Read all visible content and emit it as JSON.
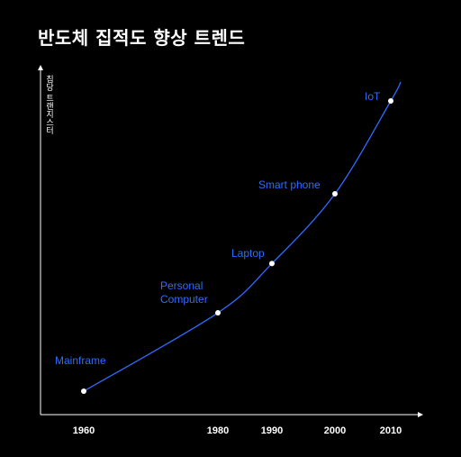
{
  "chart_data": {
    "type": "line",
    "title": "반도체 집적도 향상 트렌드",
    "ylabel": "칩당 트랜지스터",
    "xlabel": "",
    "x_ticks": [
      "1960",
      "1980",
      "1990",
      "2000",
      "2010"
    ],
    "points": [
      {
        "x": 1960,
        "level": 0.0,
        "label": [
          "Mainframe"
        ]
      },
      {
        "x": 1980,
        "level": 0.27,
        "label": [
          "Personal",
          "Computer"
        ]
      },
      {
        "x": 1990,
        "level": 0.44,
        "label": [
          "Laptop"
        ]
      },
      {
        "x": 2000,
        "level": 0.68,
        "label": [
          "Smart phone"
        ]
      },
      {
        "x": 2010,
        "level": 1.0,
        "label": [
          "IoT"
        ]
      }
    ],
    "line_color": "#2f6bff",
    "point_color": "#ffffff",
    "grid": false
  }
}
